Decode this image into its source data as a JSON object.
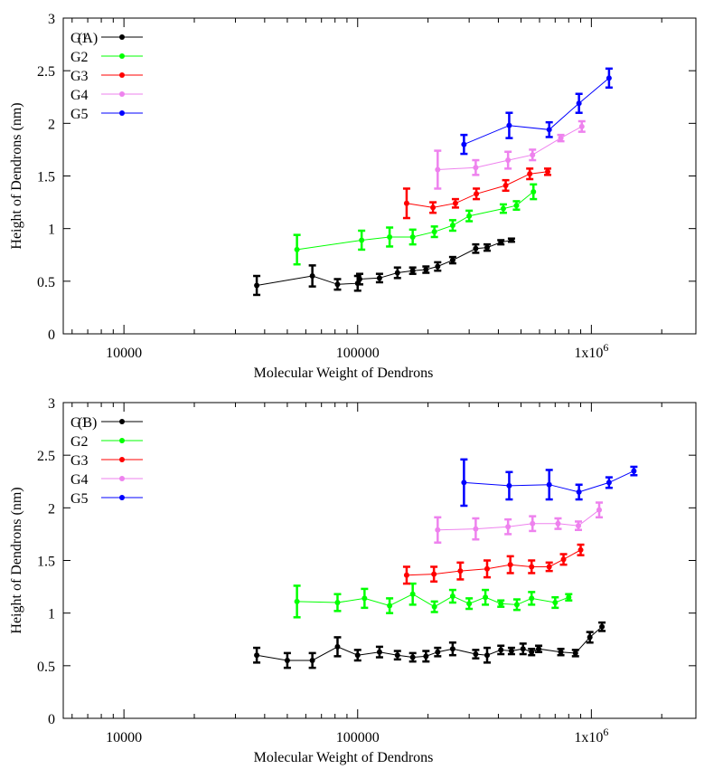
{
  "chart_data": [
    {
      "type": "line",
      "panel_label": "(A)",
      "xlabel": "Molecular Weight of Dendrons",
      "ylabel": "Height of Dendrons (nm)",
      "xscale": "log",
      "xlim": [
        5500,
        2800000
      ],
      "ylim": [
        0,
        3
      ],
      "xticks": [
        10000,
        100000,
        1000000
      ],
      "xtick_labels": [
        "10000",
        "100000",
        "1x10^6"
      ],
      "yticks": [
        0,
        0.5,
        1,
        1.5,
        2,
        2.5,
        3
      ],
      "ytick_labels": [
        "0",
        "0.5",
        "1",
        "1.5",
        "2",
        "2.5",
        "3"
      ],
      "grid": false,
      "legend_position": "top-left",
      "series": [
        {
          "name": "G1",
          "color": "#000000",
          "x": [
            37000,
            64000,
            82000,
            100000,
            102000,
            124000,
            148000,
            172000,
            196000,
            220000,
            255000,
            320000,
            358000,
            410000,
            455000
          ],
          "y": [
            0.46,
            0.55,
            0.47,
            0.48,
            0.52,
            0.53,
            0.58,
            0.6,
            0.61,
            0.64,
            0.7,
            0.81,
            0.82,
            0.87,
            0.89
          ],
          "err": [
            0.09,
            0.1,
            0.05,
            0.07,
            0.05,
            0.04,
            0.05,
            0.03,
            0.03,
            0.04,
            0.03,
            0.04,
            0.03,
            0.02,
            0.015
          ]
        },
        {
          "name": "G2",
          "color": "#00ff00",
          "x": [
            55000,
            104000,
            137000,
            172000,
            213000,
            255000,
            300000,
            420000,
            478000,
            565000
          ],
          "y": [
            0.8,
            0.89,
            0.92,
            0.92,
            0.97,
            1.03,
            1.12,
            1.19,
            1.22,
            1.35
          ],
          "err": [
            0.14,
            0.09,
            0.09,
            0.07,
            0.05,
            0.05,
            0.05,
            0.04,
            0.04,
            0.07
          ]
        },
        {
          "name": "G3",
          "color": "#ff0000",
          "x": [
            162000,
            210000,
            262000,
            322000,
            430000,
            545000,
            650000
          ],
          "y": [
            1.24,
            1.2,
            1.24,
            1.33,
            1.41,
            1.52,
            1.54
          ],
          "err": [
            0.14,
            0.05,
            0.04,
            0.05,
            0.05,
            0.05,
            0.03
          ]
        },
        {
          "name": "G4",
          "color": "#ee82ee",
          "x": [
            220000,
            320000,
            440000,
            560000,
            740000,
            910000
          ],
          "y": [
            1.56,
            1.58,
            1.65,
            1.7,
            1.86,
            1.97
          ],
          "err": [
            0.18,
            0.07,
            0.08,
            0.05,
            0.03,
            0.05
          ]
        },
        {
          "name": "G5",
          "color": "#0000ff",
          "x": [
            285000,
            445000,
            660000,
            885000,
            1190000
          ],
          "y": [
            1.8,
            1.98,
            1.94,
            2.19,
            2.43
          ],
          "err": [
            0.09,
            0.12,
            0.07,
            0.09,
            0.09
          ]
        }
      ]
    },
    {
      "type": "line",
      "panel_label": "(B)",
      "xlabel": "Molecular Weight of Dendrons",
      "ylabel": "Height of Dendrons (nm)",
      "xscale": "log",
      "xlim": [
        5500,
        2800000
      ],
      "ylim": [
        0,
        3
      ],
      "xticks": [
        10000,
        100000,
        1000000
      ],
      "xtick_labels": [
        "10000",
        "100000",
        "1x10^6"
      ],
      "yticks": [
        0,
        0.5,
        1,
        1.5,
        2,
        2.5,
        3
      ],
      "ytick_labels": [
        "0",
        "0.5",
        "1",
        "1.5",
        "2",
        "2.5",
        "3"
      ],
      "grid": false,
      "legend_position": "top-left",
      "series": [
        {
          "name": "G1",
          "color": "#000000",
          "x": [
            37000,
            50000,
            64000,
            82000,
            100000,
            124000,
            148000,
            172000,
            196000,
            220000,
            255000,
            320000,
            358000,
            410000,
            455000,
            510000,
            555000,
            595000,
            740000,
            855000,
            985000,
            1110000
          ],
          "y": [
            0.6,
            0.55,
            0.55,
            0.68,
            0.6,
            0.63,
            0.6,
            0.58,
            0.59,
            0.63,
            0.66,
            0.61,
            0.6,
            0.65,
            0.64,
            0.66,
            0.63,
            0.66,
            0.63,
            0.62,
            0.77,
            0.87
          ],
          "err": [
            0.07,
            0.07,
            0.07,
            0.09,
            0.05,
            0.05,
            0.04,
            0.04,
            0.05,
            0.04,
            0.06,
            0.04,
            0.07,
            0.04,
            0.03,
            0.05,
            0.03,
            0.03,
            0.03,
            0.03,
            0.05,
            0.04
          ]
        },
        {
          "name": "G2",
          "color": "#00ff00",
          "x": [
            55000,
            82000,
            107000,
            137000,
            172000,
            213000,
            255000,
            300000,
            352000,
            410000,
            480000,
            555000,
            700000,
            800000
          ],
          "y": [
            1.11,
            1.1,
            1.14,
            1.07,
            1.18,
            1.06,
            1.16,
            1.09,
            1.15,
            1.09,
            1.08,
            1.14,
            1.1,
            1.15
          ],
          "err": [
            0.15,
            0.08,
            0.09,
            0.07,
            0.1,
            0.05,
            0.06,
            0.05,
            0.07,
            0.03,
            0.05,
            0.06,
            0.05,
            0.03
          ]
        },
        {
          "name": "G3",
          "color": "#ff0000",
          "x": [
            162000,
            212000,
            275000,
            358000,
            450000,
            555000,
            660000,
            760000,
            900000
          ],
          "y": [
            1.36,
            1.37,
            1.4,
            1.42,
            1.46,
            1.44,
            1.44,
            1.51,
            1.6
          ],
          "err": [
            0.08,
            0.07,
            0.08,
            0.08,
            0.08,
            0.06,
            0.04,
            0.05,
            0.05
          ]
        },
        {
          "name": "G4",
          "color": "#ee82ee",
          "x": [
            220000,
            320000,
            440000,
            560000,
            720000,
            880000,
            1080000
          ],
          "y": [
            1.79,
            1.8,
            1.82,
            1.85,
            1.85,
            1.83,
            1.98
          ],
          "err": [
            0.12,
            0.1,
            0.07,
            0.07,
            0.05,
            0.04,
            0.07
          ]
        },
        {
          "name": "G5",
          "color": "#0000ff",
          "x": [
            285000,
            445000,
            660000,
            885000,
            1190000,
            1520000
          ],
          "y": [
            2.24,
            2.21,
            2.22,
            2.15,
            2.24,
            2.35
          ],
          "err": [
            0.22,
            0.13,
            0.14,
            0.07,
            0.05,
            0.04
          ]
        }
      ]
    }
  ]
}
